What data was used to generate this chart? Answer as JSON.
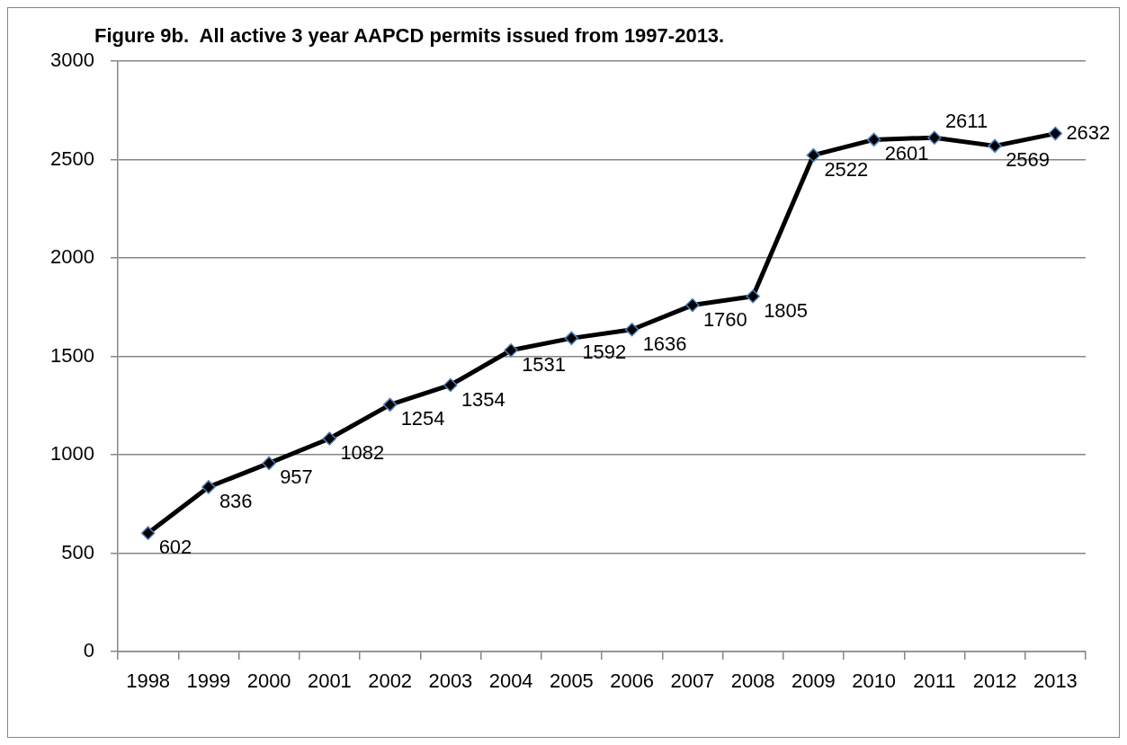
{
  "chart_data": {
    "type": "line",
    "title": "Figure 9b.  All active 3 year AAPCD permits issued from 1997-2013.",
    "categories": [
      "1998",
      "1999",
      "2000",
      "2001",
      "2002",
      "2003",
      "2004",
      "2005",
      "2006",
      "2007",
      "2008",
      "2009",
      "2010",
      "2011",
      "2012",
      "2013"
    ],
    "series": [
      {
        "color": "#000000",
        "values": [
          602,
          836,
          957,
          1082,
          1254,
          1354,
          1531,
          1592,
          1636,
          1760,
          1805,
          2522,
          2601,
          2611,
          2569,
          2632
        ]
      }
    ],
    "ylim": [
      0,
      3000
    ],
    "yticks": [
      0,
      500,
      1000,
      1500,
      2000,
      2500,
      3000
    ],
    "grid": "y",
    "legend": false,
    "marker": "diamond",
    "line_style": "solid",
    "data_labels": true
  }
}
